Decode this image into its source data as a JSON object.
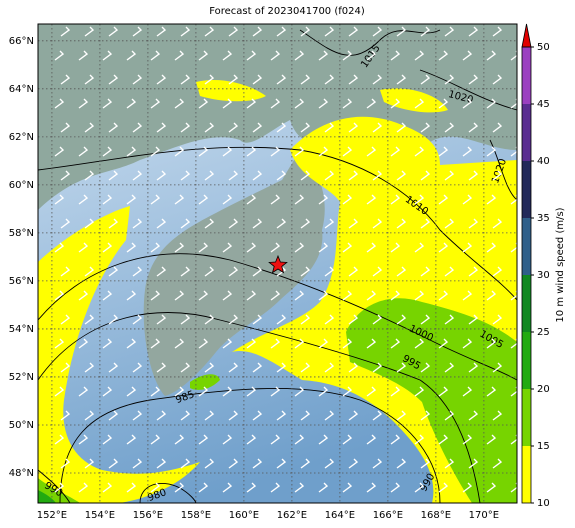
{
  "map": {
    "title": "Forecast of 2023041700 (f024)",
    "xlim": [
      151.42,
      171.38
    ],
    "ylim": [
      46.75,
      66.7
    ],
    "xticks": [
      {
        "value": 152,
        "label": "152°E"
      },
      {
        "value": 154,
        "label": "154°E"
      },
      {
        "value": 156,
        "label": "156°E"
      },
      {
        "value": 158,
        "label": "158°E"
      },
      {
        "value": 160,
        "label": "160°E"
      },
      {
        "value": 162,
        "label": "162°E"
      },
      {
        "value": 164,
        "label": "164°E"
      },
      {
        "value": 166,
        "label": "166°E"
      },
      {
        "value": 168,
        "label": "168°E"
      },
      {
        "value": 170,
        "label": "170°E"
      }
    ],
    "yticks": [
      {
        "value": 48,
        "label": "48°N"
      },
      {
        "value": 50,
        "label": "50°N"
      },
      {
        "value": 52,
        "label": "52°N"
      },
      {
        "value": 54,
        "label": "54°N"
      },
      {
        "value": 56,
        "label": "56°N"
      },
      {
        "value": 58,
        "label": "58°N"
      },
      {
        "value": 60,
        "label": "60°N"
      },
      {
        "value": 62,
        "label": "62°N"
      },
      {
        "value": 64,
        "label": "64°N"
      },
      {
        "value": 66,
        "label": "66°N"
      }
    ],
    "contour_labels": [
      1015,
      1020,
      1020,
      1010,
      1000,
      1005,
      995,
      985,
      990,
      980,
      990
    ]
  },
  "colorbar": {
    "label": "10 m wind speed (m/s)",
    "lim": [
      10,
      50
    ],
    "ticks": [
      10,
      15,
      20,
      25,
      30,
      35,
      40,
      45,
      50
    ],
    "colors": [
      "#ffff00",
      "#77d400",
      "#22aa11",
      "#118822",
      "#2f5f8a",
      "#22295a",
      "#5a2d91",
      "#9b40c0"
    ],
    "extend_color": "#e00000"
  }
}
